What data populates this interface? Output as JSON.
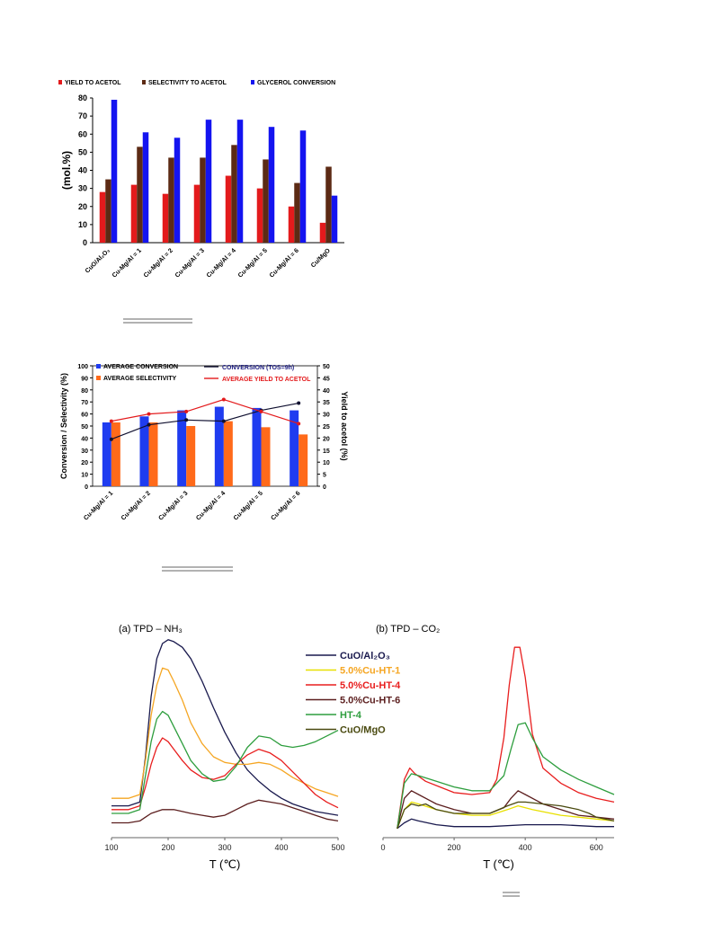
{
  "chart_data": [
    {
      "type": "bar",
      "ylabel": "(mol.%)",
      "ylim": [
        0,
        80
      ],
      "yticks": [
        0,
        10,
        20,
        30,
        40,
        50,
        60,
        70,
        80
      ],
      "legend": "top",
      "categories": [
        "CuO/Al₂O₃",
        "Cu-Mg/Al = 1",
        "Cu-Mg/Al = 2",
        "Cu-Mg/Al = 3",
        "Cu-Mg/Al = 4",
        "Cu-Mg/Al = 5",
        "Cu-Mg/Al = 6",
        "Cu/MgO"
      ],
      "series": [
        {
          "name": "YIELD TO ACETOL",
          "color": "#e31a1c",
          "values": [
            28,
            32,
            27,
            32,
            37,
            30,
            20,
            11
          ]
        },
        {
          "name": "SELECTIVITY TO ACETOL",
          "color": "#5c2a14",
          "values": [
            35,
            53,
            47,
            47,
            54,
            46,
            33,
            42
          ]
        },
        {
          "name": "GLYCEROL CONVERSION",
          "color": "#1414f0",
          "values": [
            79,
            61,
            58,
            68,
            68,
            64,
            62,
            26
          ]
        }
      ]
    },
    {
      "type": "bar",
      "ylabel": "Conversion / Selectivity (%)",
      "y2label": "Yield to acetol (%)",
      "ylim": [
        0,
        100
      ],
      "y2lim": [
        0,
        50
      ],
      "yticks": [
        0,
        10,
        20,
        30,
        40,
        50,
        60,
        70,
        80,
        90,
        100
      ],
      "y2ticks": [
        0,
        5,
        10,
        15,
        20,
        25,
        30,
        35,
        40,
        45,
        50
      ],
      "legend": "top",
      "categories": [
        "Cu-Mg/Al = 1",
        "Cu-Mg/Al = 2",
        "Cu-Mg/Al = 3",
        "Cu-Mg/Al = 4",
        "Cu-Mg/Al = 5",
        "Cu-Mg/Al = 6"
      ],
      "series": [
        {
          "name": "AVERAGE CONVERSION",
          "kind": "bar",
          "axis": "left",
          "color": "#1f3cf0",
          "values": [
            53,
            58,
            63,
            66,
            65,
            63
          ]
        },
        {
          "name": "AVERAGE SELECTIVITY",
          "kind": "bar",
          "axis": "left",
          "color": "#ff6a1a",
          "values": [
            53,
            53,
            50,
            54,
            49,
            43
          ]
        },
        {
          "name": "CONVERSION (TOS=9h)",
          "kind": "line",
          "axis": "left",
          "color": "#101030",
          "values": [
            39,
            51,
            55,
            54,
            63,
            69
          ]
        },
        {
          "name": "AVERAGE YIELD TO ACETOL",
          "kind": "line",
          "axis": "right",
          "color": "#e31a1c",
          "values": [
            27,
            30,
            31,
            36,
            31,
            26
          ]
        }
      ]
    },
    {
      "type": "line",
      "title": "(a) TPD – NH₃",
      "xlabel": "T (℃)",
      "xlim": [
        100,
        500
      ],
      "xticks": [
        100,
        200,
        300,
        400,
        500
      ],
      "series": [
        {
          "name": "CuO/Al₂O₃",
          "color": "#1a1a4e",
          "x": [
            100,
            130,
            150,
            160,
            170,
            180,
            190,
            200,
            210,
            225,
            240,
            260,
            280,
            300,
            320,
            340,
            360,
            380,
            400,
            420,
            440,
            460,
            480,
            500
          ],
          "y": [
            0.14,
            0.14,
            0.16,
            0.4,
            0.72,
            0.92,
            1.0,
            1.02,
            1.01,
            0.98,
            0.92,
            0.8,
            0.66,
            0.53,
            0.42,
            0.33,
            0.27,
            0.22,
            0.18,
            0.15,
            0.13,
            0.11,
            0.1,
            0.09
          ]
        },
        {
          "name": "5.0%Cu-HT-1",
          "color": "#f5a623",
          "x": [
            100,
            130,
            150,
            160,
            170,
            180,
            190,
            200,
            210,
            225,
            240,
            260,
            280,
            300,
            320,
            340,
            360,
            380,
            400,
            420,
            440,
            460,
            480,
            500
          ],
          "y": [
            0.18,
            0.18,
            0.2,
            0.38,
            0.62,
            0.78,
            0.87,
            0.86,
            0.8,
            0.7,
            0.58,
            0.47,
            0.4,
            0.37,
            0.36,
            0.36,
            0.37,
            0.36,
            0.33,
            0.29,
            0.26,
            0.23,
            0.21,
            0.19
          ]
        },
        {
          "name": "5.0%Cu-HT-4",
          "color": "#e81e1e",
          "x": [
            100,
            130,
            150,
            160,
            170,
            180,
            190,
            200,
            210,
            225,
            240,
            260,
            280,
            300,
            320,
            340,
            360,
            380,
            400,
            420,
            440,
            460,
            480,
            500
          ],
          "y": [
            0.12,
            0.12,
            0.14,
            0.24,
            0.36,
            0.45,
            0.5,
            0.48,
            0.44,
            0.38,
            0.33,
            0.29,
            0.28,
            0.3,
            0.36,
            0.41,
            0.44,
            0.42,
            0.38,
            0.32,
            0.26,
            0.2,
            0.16,
            0.13
          ]
        },
        {
          "name": "5.0%Cu-HT-6",
          "color": "#5c1f1f",
          "x": [
            100,
            130,
            150,
            160,
            170,
            180,
            190,
            200,
            210,
            225,
            240,
            260,
            280,
            300,
            320,
            340,
            360,
            380,
            400,
            420,
            440,
            460,
            480,
            500
          ],
          "y": [
            0.05,
            0.05,
            0.06,
            0.08,
            0.1,
            0.11,
            0.12,
            0.12,
            0.12,
            0.11,
            0.1,
            0.09,
            0.08,
            0.09,
            0.12,
            0.15,
            0.17,
            0.16,
            0.15,
            0.13,
            0.11,
            0.09,
            0.07,
            0.06
          ]
        },
        {
          "name": "HT-4",
          "color": "#2e9e3e",
          "x": [
            100,
            130,
            150,
            160,
            170,
            180,
            190,
            200,
            210,
            225,
            240,
            260,
            280,
            300,
            320,
            340,
            360,
            380,
            400,
            420,
            440,
            460,
            480,
            500
          ],
          "y": [
            0.1,
            0.1,
            0.12,
            0.3,
            0.48,
            0.6,
            0.64,
            0.62,
            0.56,
            0.47,
            0.38,
            0.31,
            0.27,
            0.28,
            0.35,
            0.45,
            0.51,
            0.5,
            0.46,
            0.45,
            0.46,
            0.48,
            0.51,
            0.54
          ]
        }
      ]
    },
    {
      "type": "line",
      "title": "(b) TPD – CO₂",
      "xlabel": "T (℃)",
      "xlim": [
        0,
        650
      ],
      "xticks": [
        0,
        200,
        400,
        600
      ],
      "series": [
        {
          "name": "CuO/Al₂O₃",
          "color": "#1a1a4e",
          "x": [
            40,
            60,
            80,
            100,
            150,
            200,
            300,
            400,
            500,
            600,
            650
          ],
          "y": [
            0.02,
            0.05,
            0.07,
            0.06,
            0.04,
            0.03,
            0.03,
            0.04,
            0.04,
            0.03,
            0.03
          ]
        },
        {
          "name": "5.0%Cu-HT-1",
          "color": "#e8e000",
          "x": [
            40,
            60,
            80,
            100,
            150,
            200,
            250,
            300,
            350,
            380,
            420,
            500,
            600,
            650
          ],
          "y": [
            0.02,
            0.12,
            0.16,
            0.15,
            0.12,
            0.1,
            0.09,
            0.09,
            0.12,
            0.14,
            0.12,
            0.09,
            0.07,
            0.06
          ]
        },
        {
          "name": "5.0%Cu-HT-4",
          "color": "#e81e1e",
          "x": [
            40,
            60,
            75,
            90,
            120,
            160,
            200,
            250,
            300,
            320,
            340,
            355,
            370,
            385,
            400,
            420,
            450,
            500,
            550,
            600,
            650
          ],
          "y": [
            0.02,
            0.28,
            0.34,
            0.31,
            0.27,
            0.24,
            0.21,
            0.2,
            0.21,
            0.28,
            0.5,
            0.78,
            0.98,
            0.98,
            0.82,
            0.52,
            0.34,
            0.26,
            0.21,
            0.18,
            0.16
          ]
        },
        {
          "name": "5.0%Cu-HT-6",
          "color": "#5c1f1f",
          "x": [
            40,
            60,
            80,
            100,
            150,
            200,
            250,
            300,
            340,
            360,
            380,
            400,
            450,
            500,
            550,
            600,
            650
          ],
          "y": [
            0.02,
            0.18,
            0.22,
            0.2,
            0.15,
            0.12,
            0.1,
            0.1,
            0.13,
            0.18,
            0.22,
            0.2,
            0.15,
            0.12,
            0.09,
            0.08,
            0.07
          ]
        },
        {
          "name": "HT-4",
          "color": "#2e9e3e",
          "x": [
            40,
            60,
            80,
            100,
            150,
            200,
            250,
            300,
            340,
            360,
            380,
            400,
            420,
            450,
            500,
            550,
            600,
            650
          ],
          "y": [
            0.02,
            0.26,
            0.31,
            0.3,
            0.27,
            0.24,
            0.22,
            0.22,
            0.3,
            0.44,
            0.57,
            0.58,
            0.5,
            0.4,
            0.33,
            0.28,
            0.24,
            0.2
          ]
        },
        {
          "name": "CuO/MgO",
          "color": "#4a4a10",
          "x": [
            40,
            60,
            80,
            100,
            120,
            150,
            200,
            300,
            350,
            380,
            400,
            450,
            500,
            550,
            580,
            600,
            650
          ],
          "y": [
            0.02,
            0.12,
            0.15,
            0.14,
            0.15,
            0.12,
            0.1,
            0.1,
            0.14,
            0.16,
            0.16,
            0.15,
            0.14,
            0.12,
            0.1,
            0.08,
            0.06
          ]
        }
      ]
    }
  ]
}
